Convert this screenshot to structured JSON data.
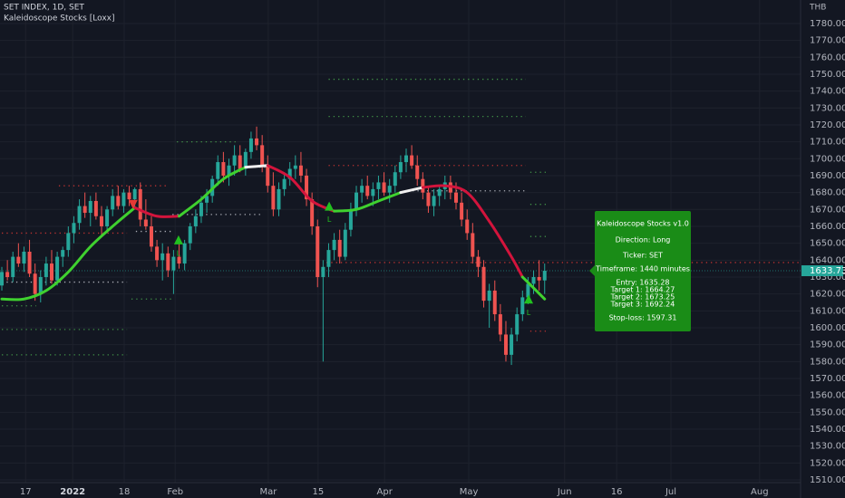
{
  "chart_data": {
    "type": "candlestick",
    "title": "SET INDEX, 1D, SET",
    "subtitle": "Kaleidoscope Stocks [Loxx]",
    "currency": "THB",
    "up_color": "#26a69a",
    "down_color": "#ef5350",
    "grid": true,
    "ylim": [
      1508.4,
      1793.9
    ],
    "yticks": [
      {
        "value": 1510,
        "label": "1510.00"
      },
      {
        "value": 1520,
        "label": "1520.00"
      },
      {
        "value": 1530,
        "label": "1530.00"
      },
      {
        "value": 1540,
        "label": "1540.00"
      },
      {
        "value": 1550,
        "label": "1550.00"
      },
      {
        "value": 1560,
        "label": "1560.00"
      },
      {
        "value": 1570,
        "label": "1570.00"
      },
      {
        "value": 1580,
        "label": "1580.00"
      },
      {
        "value": 1590,
        "label": "1590.00"
      },
      {
        "value": 1600,
        "label": "1600.00"
      },
      {
        "value": 1610,
        "label": "1610.00"
      },
      {
        "value": 1620,
        "label": "1620.00"
      },
      {
        "value": 1630,
        "label": "1630.00"
      },
      {
        "value": 1640,
        "label": "1640.00"
      },
      {
        "value": 1650,
        "label": "1650.00"
      },
      {
        "value": 1660,
        "label": "1660.00"
      },
      {
        "value": 1670,
        "label": "1670.00"
      },
      {
        "value": 1680,
        "label": "1680.00"
      },
      {
        "value": 1690,
        "label": "1690.00"
      },
      {
        "value": 1700,
        "label": "1700.00"
      },
      {
        "value": 1710,
        "label": "1710.00"
      },
      {
        "value": 1720,
        "label": "1720.00"
      },
      {
        "value": 1730,
        "label": "1730.00"
      },
      {
        "value": 1740,
        "label": "1740.00"
      },
      {
        "value": 1750,
        "label": "1750.00"
      },
      {
        "value": 1760,
        "label": "1760.00"
      },
      {
        "value": 1770,
        "label": "1770.00"
      },
      {
        "value": 1780,
        "label": "1780.00"
      }
    ],
    "xlim": [
      -0.33,
      144.2
    ],
    "xticks": [
      {
        "value": 4.3,
        "label": "17"
      },
      {
        "value": 12.8,
        "label": "2022"
      },
      {
        "value": 22.1,
        "label": "18"
      },
      {
        "value": 31.3,
        "label": "Feb"
      },
      {
        "value": 48.1,
        "label": "Mar"
      },
      {
        "value": 57.1,
        "label": "15"
      },
      {
        "value": 69.1,
        "label": "Apr"
      },
      {
        "value": 84.3,
        "label": "May"
      },
      {
        "value": 101.6,
        "label": "Jun"
      },
      {
        "value": 111,
        "label": "16"
      },
      {
        "value": 120.8,
        "label": "Jul"
      },
      {
        "value": 136.8,
        "label": "Aug"
      }
    ],
    "candles": [
      [
        1625,
        1636,
        1622,
        1633
      ],
      [
        1633,
        1640,
        1628,
        1630
      ],
      [
        1630,
        1645,
        1627,
        1642
      ],
      [
        1642,
        1650,
        1636,
        1638
      ],
      [
        1638,
        1648,
        1633,
        1645
      ],
      [
        1645,
        1652,
        1630,
        1632
      ],
      [
        1632,
        1638,
        1616,
        1620
      ],
      [
        1620,
        1634,
        1615,
        1630
      ],
      [
        1630,
        1642,
        1625,
        1638
      ],
      [
        1638,
        1646,
        1626,
        1628
      ],
      [
        1628,
        1645,
        1625,
        1642
      ],
      [
        1642,
        1648,
        1636,
        1646
      ],
      [
        1646,
        1660,
        1642,
        1656
      ],
      [
        1656,
        1666,
        1650,
        1662
      ],
      [
        1662,
        1676,
        1658,
        1672
      ],
      [
        1672,
        1680,
        1665,
        1668
      ],
      [
        1668,
        1678,
        1660,
        1675
      ],
      [
        1675,
        1680,
        1664,
        1666
      ],
      [
        1666,
        1672,
        1655,
        1660
      ],
      [
        1660,
        1672,
        1656,
        1670
      ],
      [
        1670,
        1682,
        1666,
        1678
      ],
      [
        1678,
        1684,
        1670,
        1672
      ],
      [
        1672,
        1682,
        1668,
        1680
      ],
      [
        1680,
        1684,
        1672,
        1676
      ],
      [
        1676,
        1683,
        1670,
        1682
      ],
      [
        1682,
        1686,
        1660,
        1664
      ],
      [
        1664,
        1676,
        1658,
        1660
      ],
      [
        1660,
        1666,
        1645,
        1648
      ],
      [
        1648,
        1652,
        1636,
        1640
      ],
      [
        1640,
        1650,
        1628,
        1644
      ],
      [
        1644,
        1648,
        1630,
        1634
      ],
      [
        1634,
        1646,
        1620,
        1642
      ],
      [
        1642,
        1650,
        1635,
        1638
      ],
      [
        1638,
        1652,
        1634,
        1650
      ],
      [
        1650,
        1662,
        1646,
        1660
      ],
      [
        1660,
        1670,
        1656,
        1666
      ],
      [
        1666,
        1678,
        1662,
        1674
      ],
      [
        1674,
        1682,
        1668,
        1678
      ],
      [
        1678,
        1690,
        1674,
        1688
      ],
      [
        1688,
        1702,
        1684,
        1698
      ],
      [
        1698,
        1704,
        1686,
        1690
      ],
      [
        1690,
        1700,
        1684,
        1696
      ],
      [
        1696,
        1708,
        1690,
        1702
      ],
      [
        1702,
        1708,
        1692,
        1694
      ],
      [
        1694,
        1706,
        1690,
        1704
      ],
      [
        1704,
        1716,
        1700,
        1712
      ],
      [
        1712,
        1719,
        1705,
        1708
      ],
      [
        1708,
        1714,
        1692,
        1696
      ],
      [
        1696,
        1702,
        1680,
        1684
      ],
      [
        1684,
        1692,
        1666,
        1670
      ],
      [
        1670,
        1686,
        1666,
        1682
      ],
      [
        1682,
        1692,
        1678,
        1688
      ],
      [
        1688,
        1698,
        1684,
        1694
      ],
      [
        1694,
        1702,
        1688,
        1696
      ],
      [
        1696,
        1704,
        1686,
        1690
      ],
      [
        1690,
        1694,
        1672,
        1676
      ],
      [
        1676,
        1680,
        1655,
        1660
      ],
      [
        1660,
        1664,
        1624,
        1630
      ],
      [
        1630,
        1640,
        1580,
        1636
      ],
      [
        1636,
        1650,
        1630,
        1646
      ],
      [
        1646,
        1656,
        1640,
        1652
      ],
      [
        1652,
        1658,
        1638,
        1642
      ],
      [
        1642,
        1662,
        1640,
        1658
      ],
      [
        1658,
        1674,
        1654,
        1670
      ],
      [
        1670,
        1684,
        1666,
        1680
      ],
      [
        1680,
        1688,
        1674,
        1684
      ],
      [
        1684,
        1690,
        1676,
        1678
      ],
      [
        1678,
        1686,
        1672,
        1682
      ],
      [
        1682,
        1690,
        1676,
        1686
      ],
      [
        1686,
        1692,
        1678,
        1680
      ],
      [
        1680,
        1688,
        1674,
        1684
      ],
      [
        1684,
        1696,
        1680,
        1692
      ],
      [
        1692,
        1702,
        1688,
        1698
      ],
      [
        1698,
        1706,
        1692,
        1702
      ],
      [
        1702,
        1708,
        1694,
        1696
      ],
      [
        1696,
        1702,
        1684,
        1688
      ],
      [
        1688,
        1692,
        1676,
        1680
      ],
      [
        1680,
        1684,
        1668,
        1672
      ],
      [
        1672,
        1682,
        1666,
        1678
      ],
      [
        1678,
        1684,
        1672,
        1682
      ],
      [
        1682,
        1690,
        1676,
        1686
      ],
      [
        1686,
        1690,
        1676,
        1680
      ],
      [
        1680,
        1686,
        1670,
        1674
      ],
      [
        1674,
        1680,
        1660,
        1664
      ],
      [
        1664,
        1670,
        1652,
        1656
      ],
      [
        1656,
        1662,
        1638,
        1642
      ],
      [
        1642,
        1646,
        1630,
        1636
      ],
      [
        1636,
        1640,
        1612,
        1616
      ],
      [
        1616,
        1626,
        1600,
        1622
      ],
      [
        1622,
        1628,
        1604,
        1608
      ],
      [
        1608,
        1614,
        1592,
        1596
      ],
      [
        1596,
        1604,
        1580,
        1584
      ],
      [
        1584,
        1600,
        1578,
        1596
      ],
      [
        1596,
        1612,
        1592,
        1608
      ],
      [
        1608,
        1622,
        1604,
        1618
      ],
      [
        1618,
        1630,
        1614,
        1626
      ],
      [
        1626,
        1634,
        1620,
        1630
      ],
      [
        1630,
        1640,
        1622,
        1628
      ],
      [
        1628,
        1638,
        1620,
        1633.73
      ]
    ],
    "indicator_segments": [
      {
        "color": "#3fd12f",
        "x": [
          0,
          4,
          8,
          12,
          16,
          20,
          24
        ],
        "values": [
          1617,
          1617,
          1622,
          1633,
          1648,
          1660,
          1671
        ]
      },
      {
        "color": "#d3143c",
        "x": [
          24,
          28,
          32
        ],
        "values": [
          1671,
          1666,
          1666
        ]
      },
      {
        "color": "#3fd12f",
        "x": [
          32,
          36,
          40,
          44
        ],
        "values": [
          1666,
          1676,
          1688,
          1695
        ]
      },
      {
        "color": "#f0f0f0",
        "x": [
          44,
          48
        ],
        "values": [
          1695,
          1696
        ]
      },
      {
        "color": "#d3143c",
        "x": [
          48,
          52,
          56,
          60
        ],
        "values": [
          1696,
          1689,
          1675,
          1669
        ]
      },
      {
        "color": "#3fd12f",
        "x": [
          60,
          64,
          68,
          72
        ],
        "values": [
          1669,
          1670,
          1675,
          1680
        ]
      },
      {
        "color": "#f0f0f0",
        "x": [
          72,
          76
        ],
        "values": [
          1680,
          1683
        ]
      },
      {
        "color": "#d3143c",
        "x": [
          76,
          80,
          84,
          88,
          92,
          94
        ],
        "values": [
          1683,
          1684,
          1680,
          1663,
          1642,
          1630
        ]
      },
      {
        "color": "#3fd12f",
        "x": [
          94,
          98
        ],
        "values": [
          1630,
          1617
        ]
      }
    ],
    "levels": [
      {
        "value": 1710,
        "x": [
          31.6,
          42.2
        ],
        "color": "#4caf50"
      },
      {
        "value": 1695,
        "x": [
          43.9,
          48.8
        ],
        "color": "#d1d4dc"
      },
      {
        "value": 1684,
        "x": [
          10.3,
          30
        ],
        "color": "#e53935"
      },
      {
        "value": 1667,
        "x": [
          30.8,
          47
        ],
        "color": "#d1d4dc"
      },
      {
        "value": 1657,
        "x": [
          24.2,
          30.8
        ],
        "color": "#d1d4dc"
      },
      {
        "value": 1656,
        "x": [
          0,
          22.6
        ],
        "color": "#e53935"
      },
      {
        "value": 1627,
        "x": [
          0,
          22.6
        ],
        "color": "#d1d4dc"
      },
      {
        "value": 1613,
        "x": [
          0,
          6.2
        ],
        "color": "#4caf50"
      },
      {
        "value": 1617,
        "x": [
          23.4,
          31.1
        ],
        "color": "#4caf50"
      },
      {
        "value": 1599,
        "x": [
          0,
          22.6
        ],
        "color": "#4caf50"
      },
      {
        "value": 1584,
        "x": [
          0,
          22.6
        ],
        "color": "#4caf50"
      },
      {
        "value": 1747,
        "x": [
          59,
          94.6
        ],
        "color": "#4caf50"
      },
      {
        "value": 1725,
        "x": [
          59,
          94.6
        ],
        "color": "#4caf50"
      },
      {
        "value": 1696,
        "x": [
          59,
          94.6
        ],
        "color": "#e53935"
      },
      {
        "value": 1681,
        "x": [
          73.3,
          94.6
        ],
        "color": "#d1d4dc"
      },
      {
        "value": 1638.6,
        "x": [
          58.6,
          144
        ],
        "color": "#e53935"
      },
      {
        "value": 1692,
        "x": [
          95.4,
          98.2
        ],
        "color": "#4caf50"
      },
      {
        "value": 1673,
        "x": [
          95.4,
          98.2
        ],
        "color": "#4caf50"
      },
      {
        "value": 1654,
        "x": [
          95.4,
          98.2
        ],
        "color": "#4caf50"
      },
      {
        "value": 1598,
        "x": [
          95.4,
          98.2
        ],
        "color": "#e53935"
      }
    ],
    "signals": [
      {
        "x": 23.7,
        "value": 1673,
        "direction": "down",
        "color": "#e53935"
      },
      {
        "x": 31.9,
        "value": 1652,
        "direction": "up",
        "color": "#22c11f",
        "label": "L"
      },
      {
        "x": 59.1,
        "value": 1672,
        "direction": "up",
        "color": "#22c11f",
        "label": "L"
      },
      {
        "x": 95.1,
        "value": 1617,
        "direction": "up",
        "color": "#22c11f",
        "label": "L"
      }
    ],
    "last_price": 1633.73,
    "info_box": {
      "color": "#1a8c17",
      "lines": [
        "Kaleidoscope Stocks v1.0",
        "Direction: Long",
        "Ticker: SET",
        "Timeframe: 1440 minutes",
        "Entry: 1635.28",
        "Target 1: 1664.27",
        "Target 2: 1673.25",
        "Target 3: 1692.24",
        "Stop-loss: 1597.31"
      ]
    }
  }
}
